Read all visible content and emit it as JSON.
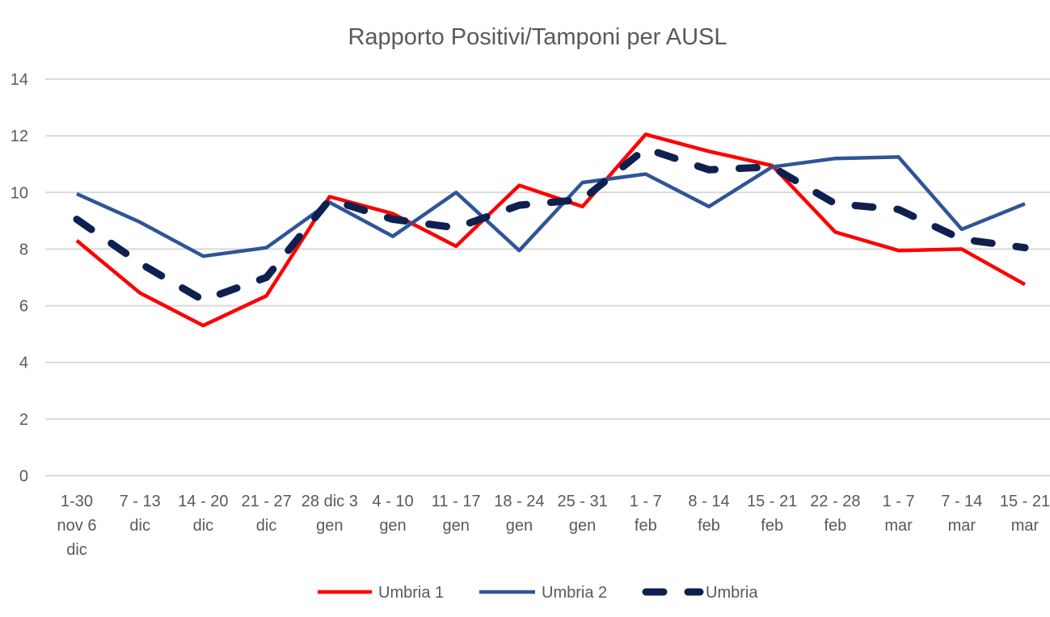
{
  "chart_data": {
    "type": "line",
    "title": "Rapporto Positivi/Tamponi per AUSL",
    "xlabel": "",
    "ylabel": "",
    "ylim": [
      0,
      14
    ],
    "yticks": [
      "0",
      "2",
      "4",
      "6",
      "8",
      "10",
      "12",
      "14"
    ],
    "grid": true,
    "legend_position": "bottom",
    "categories": [
      [
        "1-30",
        "nov 6",
        "dic"
      ],
      [
        "7 - 13",
        "dic"
      ],
      [
        "14 - 20",
        "dic"
      ],
      [
        "21 - 27",
        "dic"
      ],
      [
        "28 dic 3",
        "gen"
      ],
      [
        "4 - 10",
        "gen"
      ],
      [
        "11 - 17",
        "gen"
      ],
      [
        "18 - 24",
        "gen"
      ],
      [
        "25 - 31",
        "gen"
      ],
      [
        "1 - 7",
        "feb"
      ],
      [
        "8 - 14",
        "feb"
      ],
      [
        "15 - 21",
        "feb"
      ],
      [
        "22 - 28",
        "feb"
      ],
      [
        "1 - 7",
        "mar"
      ],
      [
        "7 - 14",
        "mar"
      ],
      [
        "15 - 21",
        "mar"
      ]
    ],
    "series": [
      {
        "name": "Umbria 1",
        "color": "#ff0000",
        "style": "solid",
        "values": [
          8.3,
          6.45,
          5.3,
          6.35,
          9.85,
          9.25,
          8.1,
          10.25,
          9.5,
          12.05,
          11.45,
          10.95,
          8.6,
          7.95,
          8.0,
          6.75
        ]
      },
      {
        "name": "Umbria 2",
        "color": "#2f5597",
        "style": "solid",
        "values": [
          9.95,
          8.95,
          7.75,
          8.05,
          9.65,
          8.45,
          10.0,
          7.95,
          10.35,
          10.65,
          9.5,
          10.9,
          11.2,
          11.25,
          8.7,
          9.6
        ]
      },
      {
        "name": "Umbria",
        "color": "#0e2050",
        "style": "dashed",
        "values": [
          9.05,
          7.5,
          6.2,
          7.0,
          9.75,
          9.05,
          8.75,
          9.55,
          9.75,
          11.55,
          10.8,
          10.9,
          9.6,
          9.4,
          8.35,
          8.05
        ]
      }
    ]
  }
}
